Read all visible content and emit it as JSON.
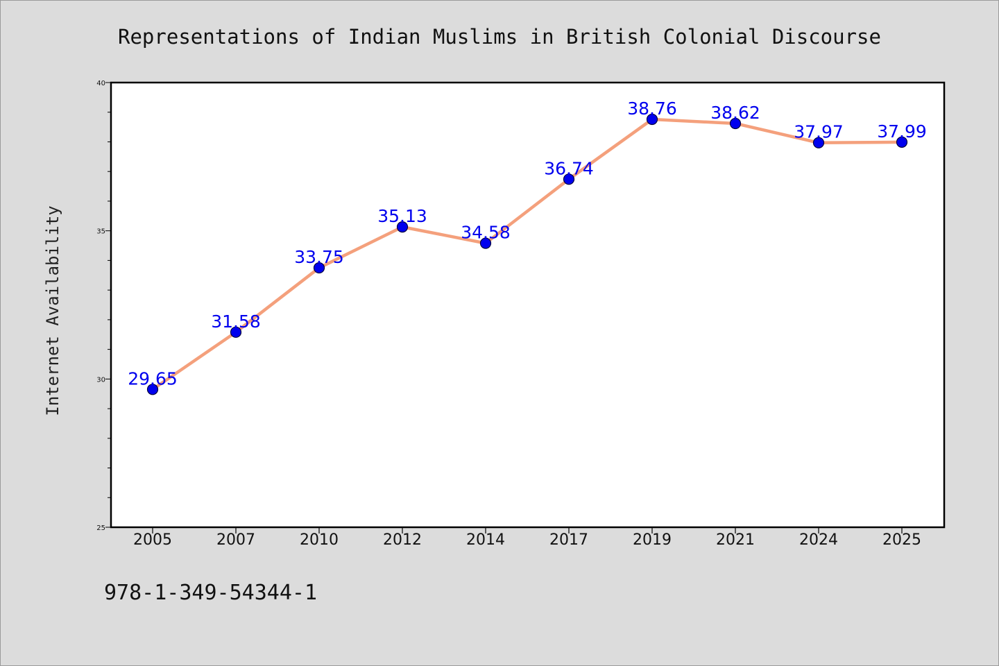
{
  "chart_data": {
    "type": "line",
    "title": "Representations of Indian Muslims in British Colonial Discourse",
    "xlabel": "",
    "ylabel": "Internet Availability",
    "categories": [
      "2005",
      "2007",
      "2010",
      "2012",
      "2014",
      "2017",
      "2019",
      "2021",
      "2024",
      "2025"
    ],
    "series": [
      {
        "values": [
          29.65,
          31.58,
          33.75,
          35.13,
          34.58,
          36.74,
          38.76,
          38.62,
          37.97,
          37.99
        ],
        "labels": [
          "29.65",
          "31.58",
          "33.75",
          "35.13",
          "34.58",
          "36.74",
          "38.76",
          "38.62",
          "37.97",
          "37.99"
        ]
      }
    ],
    "ylim": [
      25,
      40
    ],
    "yticks": [
      "25",
      "30",
      "35",
      "40"
    ],
    "grid": false,
    "legend": "none"
  },
  "footer": {
    "isbn": "978-1-349-54344-1"
  },
  "colors": {
    "background": "#dcdcdc",
    "plot_background": "#ffffff",
    "line": "#f4a07c",
    "marker": "#0000ee",
    "marker_edge": "#00003c",
    "data_label": "#0000ee"
  }
}
